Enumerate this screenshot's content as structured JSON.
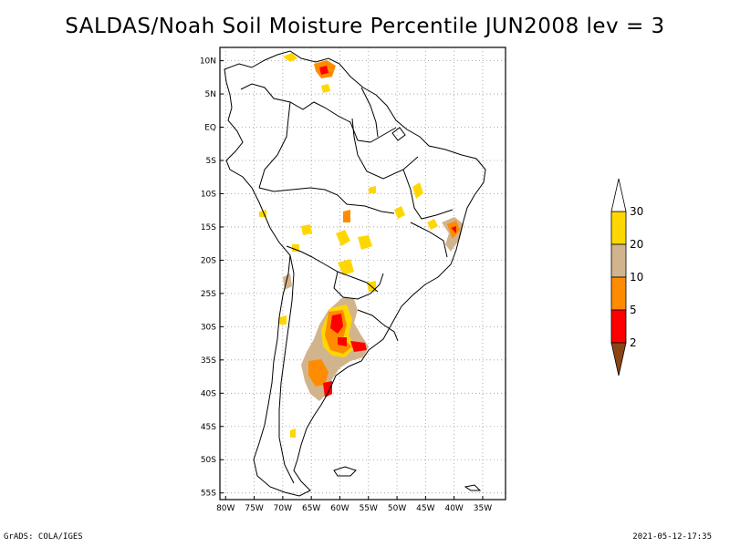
{
  "title": "SALDAS/Noah Soil Moisture Percentile JUN2008 lev = 3",
  "map": {
    "region": "South America",
    "lon_range": [
      -81,
      -31
    ],
    "lat_range": [
      -56,
      12
    ],
    "lon_ticks": [
      {
        "value": -80,
        "label": "80W"
      },
      {
        "value": -75,
        "label": "75W"
      },
      {
        "value": -70,
        "label": "70W"
      },
      {
        "value": -65,
        "label": "65W"
      },
      {
        "value": -60,
        "label": "60W"
      },
      {
        "value": -55,
        "label": "55W"
      },
      {
        "value": -50,
        "label": "50W"
      },
      {
        "value": -45,
        "label": "45W"
      },
      {
        "value": -40,
        "label": "40W"
      },
      {
        "value": -35,
        "label": "35W"
      }
    ],
    "lat_ticks": [
      {
        "value": 10,
        "label": "10N"
      },
      {
        "value": 5,
        "label": "5N"
      },
      {
        "value": 0,
        "label": "EQ"
      },
      {
        "value": -5,
        "label": "5S"
      },
      {
        "value": -10,
        "label": "10S"
      },
      {
        "value": -15,
        "label": "15S"
      },
      {
        "value": -20,
        "label": "20S"
      },
      {
        "value": -25,
        "label": "25S"
      },
      {
        "value": -30,
        "label": "30S"
      },
      {
        "value": -35,
        "label": "35S"
      },
      {
        "value": -40,
        "label": "40S"
      },
      {
        "value": -45,
        "label": "45S"
      },
      {
        "value": -50,
        "label": "50S"
      },
      {
        "value": -55,
        "label": "55S"
      }
    ],
    "grid": true
  },
  "colorbar": {
    "colors": [
      "#8b4513",
      "#ff0000",
      "#ff8c00",
      "#d2b48c",
      "#ffd700",
      "#ffffff"
    ],
    "labels": [
      "2",
      "5",
      "10",
      "20",
      "30"
    ]
  },
  "footer": {
    "left": "GrADS: COLA/IGES",
    "right": "2021-05-12-17:35"
  }
}
